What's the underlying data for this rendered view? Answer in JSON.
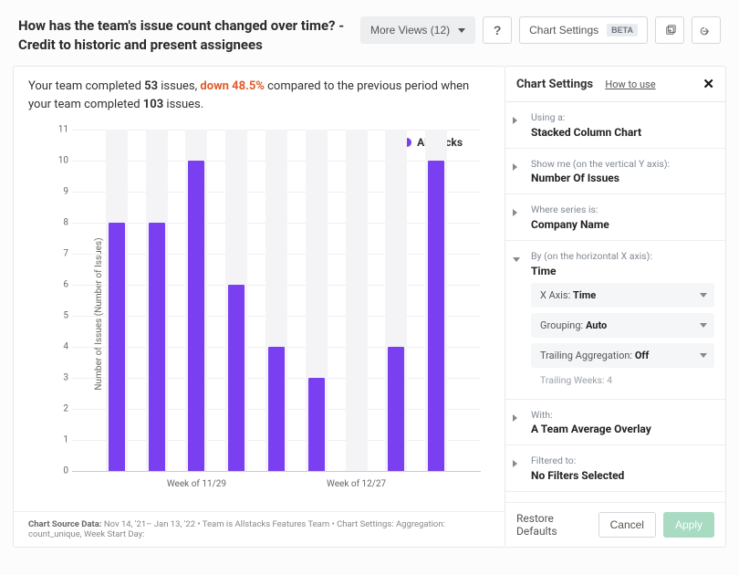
{
  "header": {
    "title": "How has the team's issue count changed over time? - Credit to historic and present assignees",
    "more_views_label": "More Views (12)",
    "help_symbol": "?",
    "chart_settings_label": "Chart Settings",
    "beta_label": "BETA"
  },
  "summary": {
    "prefix": "Your team completed ",
    "count": "53",
    "mid1": " issues, ",
    "delta": "down 48.5%",
    "mid2": " compared to the previous period when your team completed ",
    "prev_count": "103",
    "suffix": " issues."
  },
  "chart": {
    "type": "bar",
    "legend_label": "Allstacks",
    "series_color": "#7b3ff2",
    "band_color": "#f4f4f6",
    "background_color": "#ffffff",
    "grid_color": "#f0f0f0",
    "baseline_color": "#cccccc",
    "y_label": "Number of Issues (Number of Issues)",
    "ylim": [
      0,
      11
    ],
    "ytick_step": 1,
    "values": [
      8,
      8,
      10,
      6,
      4,
      3,
      null,
      4,
      10
    ],
    "x_tick_labels": {
      "2": "Week of 11/29",
      "6": "Week of 12/27"
    }
  },
  "source_note": {
    "label": "Chart Source Data: ",
    "text": "Nov 14, '21– Jan 13, '22 • Team is Allstacks Features Team • Chart Settings: Aggregation: count_unique, Week Start Day:"
  },
  "settings": {
    "title": "Chart Settings",
    "how_to_use": "How to use",
    "sections": {
      "using": {
        "label": "Using a:",
        "value": "Stacked Column Chart"
      },
      "yaxis": {
        "label": "Show me (on the vertical Y axis):",
        "value": "Number Of Issues"
      },
      "series": {
        "label": "Where series is:",
        "value": "Company Name"
      },
      "xaxis": {
        "label": "By (on the horizontal X axis):",
        "value": "Time",
        "xaxis_row": {
          "label": "X Axis: ",
          "value": "Time"
        },
        "grouping_row": {
          "label": "Grouping: ",
          "value": "Auto"
        },
        "trailing_row": {
          "label": "Trailing Aggregation: ",
          "value": "Off"
        },
        "trailing_weeks": {
          "label": "Trailing Weeks: ",
          "value": "4"
        }
      },
      "with": {
        "label": "With:",
        "value": "A Team Average Overlay"
      },
      "filtered": {
        "label": "Filtered to:",
        "value": "No Filters Selected"
      }
    },
    "footer": {
      "restore": "Restore Defaults",
      "cancel": "Cancel",
      "apply": "Apply"
    }
  }
}
